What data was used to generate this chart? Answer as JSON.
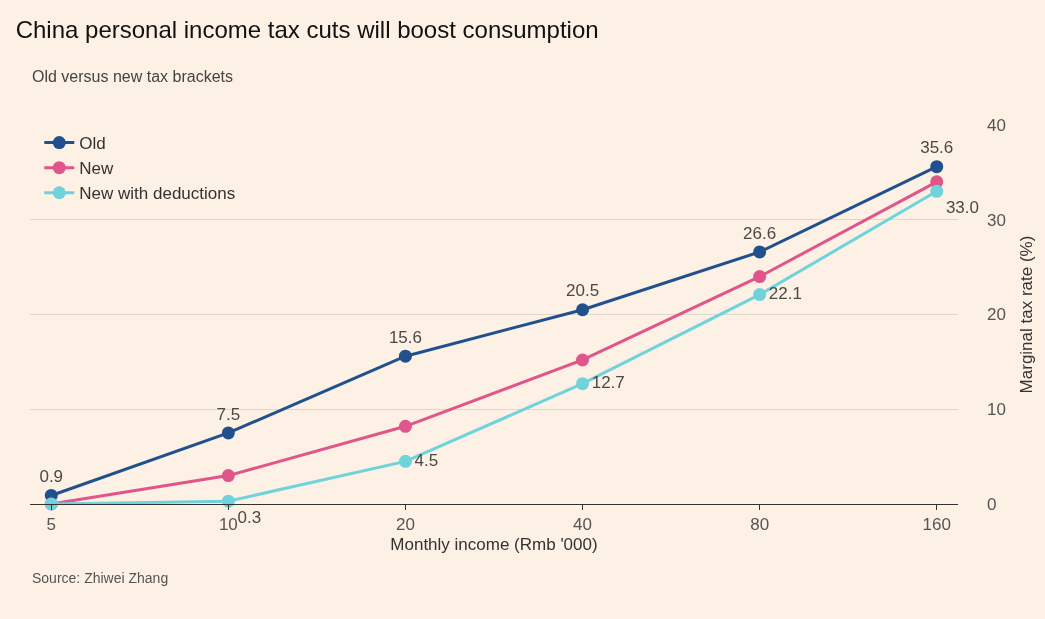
{
  "chart_data": {
    "type": "line",
    "title": "China personal income tax cuts will boost consumption",
    "subtitle": "Old versus new tax brackets",
    "xlabel": "Monthly income (Rmb '000)",
    "ylabel": "Marginal tax rate (%)",
    "categories": [
      "5",
      "10",
      "20",
      "40",
      "80",
      "160"
    ],
    "series": [
      {
        "name": "Old",
        "color": "#21508f",
        "values": [
          0.9,
          7.5,
          15.6,
          20.5,
          26.6,
          35.6
        ],
        "value_labels": [
          "0.9",
          "7.5",
          "15.6",
          "20.5",
          "26.6",
          "35.6"
        ]
      },
      {
        "name": "New",
        "color": "#e0568a",
        "values": [
          0,
          3,
          8.2,
          15.2,
          24,
          34
        ],
        "value_labels": [
          null,
          null,
          null,
          null,
          null,
          null
        ]
      },
      {
        "name": "New with deductions",
        "color": "#6fd3dc",
        "values": [
          0,
          0.3,
          4.5,
          12.7,
          22.1,
          33.0
        ],
        "value_labels": [
          null,
          "0.3",
          "4.5",
          "12.7",
          "22.1",
          "33.0"
        ]
      }
    ],
    "ylim": [
      0,
      40
    ],
    "yticks": [
      0,
      10,
      20,
      30,
      40
    ],
    "grid": "y",
    "legend": "top left",
    "marker": "circle",
    "line_style": "solid",
    "annotations": [
      "Source: Zhiwei Zhang"
    ]
  }
}
